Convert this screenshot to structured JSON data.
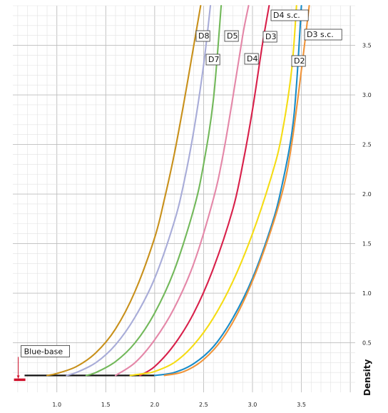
{
  "chart_data": {
    "type": "line",
    "title": "",
    "xlabel": "",
    "ylabel": "Density",
    "xlim": [
      0.55,
      4.05
    ],
    "ylim": [
      0.0,
      3.9
    ],
    "x_ticks": [
      1.0,
      1.5,
      2.0,
      2.5,
      3.0,
      3.5
    ],
    "x_tick_labels": [
      "1.0",
      "1.5",
      "2.0",
      "2.5",
      "3.0",
      "3.5"
    ],
    "y_ticks": [
      0.5,
      1.0,
      1.5,
      2.0,
      2.5,
      3.0,
      3.5
    ],
    "y_tick_labels": [
      "0.5",
      "1.0",
      "1.5",
      "2.0",
      "2.5",
      "3.0",
      "3.5"
    ],
    "grid": true,
    "base_density": 0.17,
    "base_marker": {
      "label": "Blue-base",
      "x": 0.62,
      "y": 0.17,
      "color": "#d0102a"
    },
    "baseline_color": "#111111",
    "series": [
      {
        "name": "D8",
        "color": "#c8901a",
        "x": [
          0.9,
          1.0,
          1.2,
          1.4,
          1.6,
          1.8,
          2.0,
          2.1,
          2.2,
          2.3,
          2.4,
          2.47
        ],
        "y": [
          0.17,
          0.19,
          0.26,
          0.4,
          0.64,
          1.02,
          1.56,
          1.95,
          2.4,
          2.93,
          3.5,
          3.9
        ]
      },
      {
        "name": "D7",
        "color": "#a8acd8",
        "x": [
          1.1,
          1.2,
          1.4,
          1.6,
          1.8,
          2.0,
          2.2,
          2.3,
          2.4,
          2.5,
          2.57
        ],
        "y": [
          0.17,
          0.2,
          0.3,
          0.48,
          0.76,
          1.15,
          1.72,
          2.12,
          2.64,
          3.3,
          3.9
        ]
      },
      {
        "name": "D5",
        "color": "#72b85a",
        "x": [
          1.3,
          1.4,
          1.6,
          1.8,
          2.0,
          2.2,
          2.4,
          2.5,
          2.6,
          2.68
        ],
        "y": [
          0.17,
          0.2,
          0.31,
          0.5,
          0.8,
          1.23,
          1.85,
          2.3,
          2.95,
          3.9
        ]
      },
      {
        "name": "D4",
        "color": "#e487a8",
        "x": [
          1.6,
          1.8,
          2.0,
          2.2,
          2.4,
          2.6,
          2.7,
          2.8,
          2.9,
          2.96
        ],
        "y": [
          0.17,
          0.3,
          0.53,
          0.85,
          1.3,
          1.95,
          2.4,
          2.98,
          3.6,
          3.9
        ]
      },
      {
        "name": "D3",
        "color": "#d8204a",
        "x": [
          1.85,
          2.0,
          2.2,
          2.4,
          2.6,
          2.8,
          2.9,
          3.0,
          3.1,
          3.17
        ],
        "y": [
          0.17,
          0.26,
          0.48,
          0.8,
          1.25,
          1.85,
          2.3,
          2.85,
          3.5,
          3.9
        ]
      },
      {
        "name": "D4 s.c.",
        "color": "#f5dc14",
        "x": [
          1.75,
          1.9,
          2.0,
          2.2,
          2.4,
          2.6,
          2.8,
          3.0,
          3.2,
          3.3,
          3.4,
          3.45
        ],
        "y": [
          0.17,
          0.19,
          0.21,
          0.3,
          0.48,
          0.75,
          1.12,
          1.6,
          2.2,
          2.6,
          3.25,
          3.9
        ]
      },
      {
        "name": "D2",
        "color": "#1a8cc8",
        "x": [
          2.0,
          2.2,
          2.4,
          2.6,
          2.8,
          3.0,
          3.2,
          3.3,
          3.4,
          3.45,
          3.5
        ],
        "y": [
          0.17,
          0.2,
          0.29,
          0.46,
          0.75,
          1.15,
          1.7,
          2.08,
          2.6,
          3.1,
          3.9
        ]
      },
      {
        "name": "D3 s.c.",
        "color": "#f0943a",
        "x": [
          2.1,
          2.3,
          2.5,
          2.7,
          2.9,
          3.1,
          3.3,
          3.4,
          3.5,
          3.58
        ],
        "y": [
          0.17,
          0.21,
          0.33,
          0.55,
          0.9,
          1.38,
          2.0,
          2.5,
          3.25,
          3.9
        ]
      }
    ]
  }
}
